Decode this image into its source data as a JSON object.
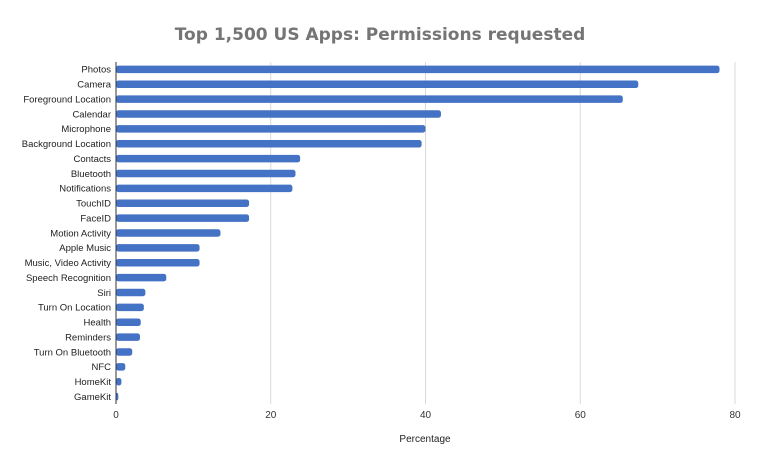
{
  "chart_data": {
    "type": "bar",
    "orientation": "horizontal",
    "title": "Top 1,500 US Apps: Permissions requested",
    "xlabel": "Percentage",
    "ylabel": "",
    "xlim": [
      0,
      80
    ],
    "xticks": [
      0,
      20,
      40,
      60,
      80
    ],
    "grid": "vertical",
    "legend": "none",
    "bar_color": "#4472c4",
    "categories": [
      "Photos",
      "Camera",
      "Foreground Location",
      "Calendar",
      "Microphone",
      "Background Location",
      "Contacts",
      "Bluetooth",
      "Notifications",
      "TouchID",
      "FaceID",
      "Motion Activity",
      "Apple Music",
      "Music, Video Activity",
      "Speech Recognition",
      "Siri",
      "Turn On Location",
      "Health",
      "Reminders",
      "Turn On Bluetooth",
      "NFC",
      "HomeKit",
      "GameKit"
    ],
    "values": [
      78,
      67.5,
      65.5,
      42,
      40,
      39.5,
      23.8,
      23.2,
      22.8,
      17.2,
      17.2,
      13.5,
      10.8,
      10.8,
      6.5,
      3.8,
      3.6,
      3.2,
      3.1,
      2.1,
      1.2,
      0.7,
      0.3
    ]
  }
}
